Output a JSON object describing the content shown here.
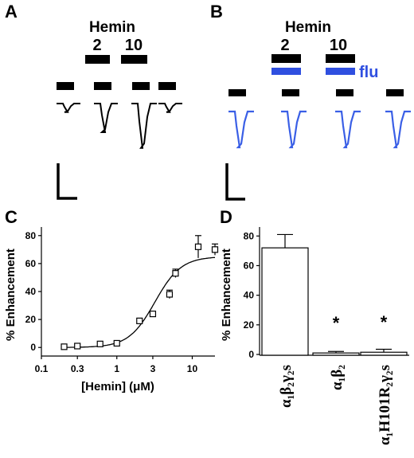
{
  "panels": {
    "A": "A",
    "B": "B",
    "C": "C",
    "D": "D"
  },
  "traces_a": {
    "drug": "Hemin",
    "conc_low": "2",
    "conc_high": "10",
    "trace_color": "#000000",
    "response_depths": [
      0.3,
      1.0,
      1.55,
      0.3
    ]
  },
  "traces_b": {
    "drug": "Hemin",
    "conc_low": "2",
    "conc_high": "10",
    "coapplied": "flu",
    "trace_color": "#3a5fe6",
    "response_depths": [
      1.0,
      1.0,
      1.0,
      1.0
    ]
  },
  "chart_data": [
    {
      "type": "scatter",
      "panel": "C",
      "xlabel": "[Hemin] (μM)",
      "ylabel": "% Enhancement",
      "xscale": "log",
      "xlim": [
        0.1,
        20
      ],
      "ylim": [
        -5,
        85
      ],
      "xticks": [
        "0.1",
        "0.3",
        "1",
        "3",
        "10"
      ],
      "yticks": [
        "0",
        "20",
        "40",
        "60",
        "80"
      ],
      "x": [
        0.2,
        0.3,
        0.6,
        1.0,
        2.0,
        3.0,
        5.0,
        6.0,
        12.0,
        20.0
      ],
      "y": [
        0.5,
        1.0,
        2.5,
        3.0,
        19,
        24,
        38,
        53,
        72,
        70
      ],
      "err": [
        0,
        0,
        0,
        0,
        0,
        0,
        3,
        3,
        8,
        4
      ],
      "fit": {
        "bottom": 0,
        "top": 65,
        "ec50": 3.2,
        "hill": 2.5
      }
    },
    {
      "type": "bar",
      "panel": "D",
      "ylabel": "% Enhancement",
      "ylim": [
        0,
        85
      ],
      "yticks": [
        "0",
        "20",
        "40",
        "60",
        "80"
      ],
      "categories": [
        "α₁β₂γ₂s",
        "α₁β₂",
        "α₁H101R₂γ₂s"
      ],
      "values": [
        72,
        1.0,
        1.5
      ],
      "err": [
        9,
        1,
        2
      ],
      "significance": [
        "",
        "*",
        "*"
      ]
    }
  ]
}
